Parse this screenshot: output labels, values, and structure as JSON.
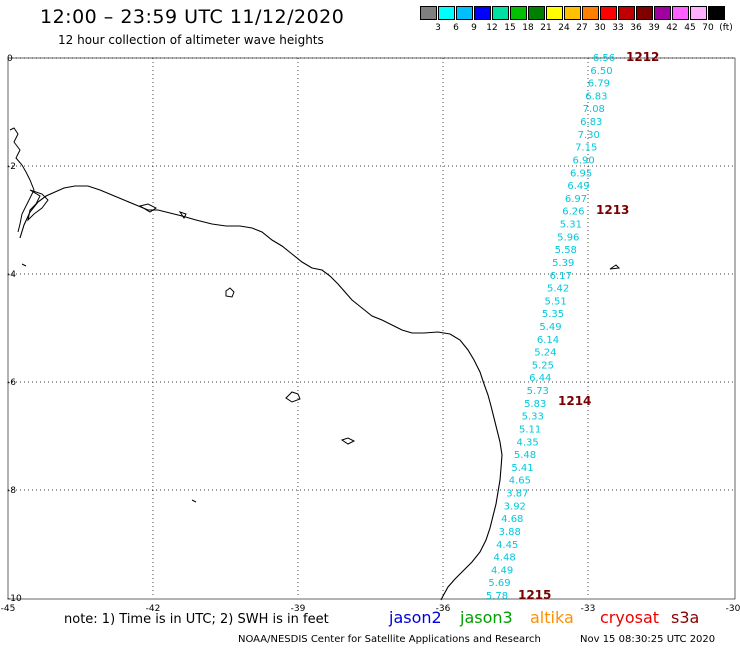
{
  "header": {
    "title": "12:00 – 23:59 UTC 11/12/2020",
    "subtitle": "12 hour collection of altimeter wave heights"
  },
  "color_scale": {
    "labels": [
      "3",
      "6",
      "9",
      "12",
      "15",
      "18",
      "21",
      "24",
      "27",
      "30",
      "33",
      "36",
      "39",
      "42",
      "45",
      "70",
      "(ft)"
    ],
    "colors": [
      "#7f7f7f",
      "#00ffff",
      "#00bfff",
      "#0000ff",
      "#00e0a0",
      "#00c000",
      "#008000",
      "#ffff00",
      "#ffc000",
      "#ff8000",
      "#ff0000",
      "#c00000",
      "#800000",
      "#a000a0",
      "#ff60ff",
      "#ffb0ff",
      "#000000"
    ]
  },
  "map": {
    "lon_labels": [
      "-45",
      "-42",
      "-39",
      "-36",
      "-33",
      "-30"
    ],
    "lat_labels": [
      "0",
      "-2",
      "-4",
      "-6",
      "-8",
      "-10"
    ],
    "wave_color": "#00c8dc",
    "time_color": "#7a0000",
    "wave_heights": [
      "6.56",
      "6.50",
      "6.79",
      "6.83",
      "7.08",
      "6.83",
      "7.30",
      "7.15",
      "6.90",
      "6.95",
      "6.49",
      "6.97",
      "6.26",
      "5.31",
      "5.96",
      "5.58",
      "5.39",
      "6.17",
      "5.42",
      "5.51",
      "5.35",
      "5.49",
      "6.14",
      "5.24",
      "5.25",
      "6.44",
      "5.73",
      "5.83",
      "5.33",
      "5.11",
      "4.35",
      "5.48",
      "5.41",
      "4.65",
      "3.87",
      "3.92",
      "4.68",
      "3.88",
      "4.45",
      "4.48",
      "4.49",
      "5.69",
      "5.78"
    ],
    "time_labels": [
      "1212",
      "1213",
      "1214",
      "1215"
    ]
  },
  "note": "note: 1) Time is in UTC; 2) SWH is in feet",
  "legend": [
    {
      "label": "jason2",
      "color": "#0000dd"
    },
    {
      "label": "jason3",
      "color": "#00a000"
    },
    {
      "label": "altika",
      "color": "#ff9000"
    },
    {
      "label": "cryosat",
      "color": "#ee0000"
    },
    {
      "label": "s3a",
      "color": "#880000"
    }
  ],
  "footer": {
    "credit": "NOAA/NESDIS Center for Satellite Applications and Research",
    "timestamp": "Nov 15 08:30:25 UTC 2020"
  }
}
